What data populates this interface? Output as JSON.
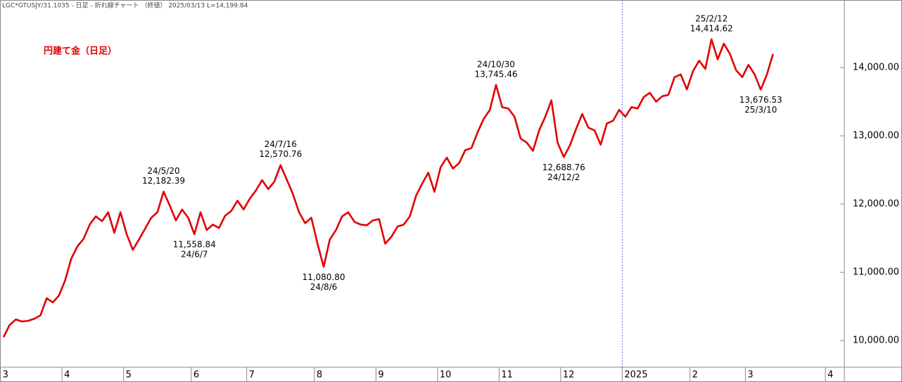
{
  "chart_data": {
    "type": "line",
    "header": "LGC*GTUSJY/31.1035 - 日足 - 折れ線チャート （終値） 2025/03/13 L=14,199.84",
    "title": "円建て金（日足）",
    "categories": [
      "3",
      null,
      null,
      null,
      null,
      null,
      null,
      null,
      null,
      null,
      "4",
      null,
      null,
      null,
      null,
      null,
      null,
      null,
      null,
      null,
      "5",
      null,
      null,
      null,
      null,
      null,
      null,
      null,
      null,
      null,
      null,
      "6",
      null,
      null,
      null,
      null,
      null,
      null,
      null,
      null,
      "7",
      null,
      null,
      null,
      null,
      null,
      null,
      null,
      null,
      null,
      null,
      "8",
      null,
      null,
      null,
      null,
      null,
      null,
      null,
      null,
      null,
      "9",
      null,
      null,
      null,
      null,
      null,
      null,
      null,
      null,
      null,
      "10",
      null,
      null,
      null,
      null,
      null,
      null,
      null,
      null,
      null,
      "11",
      null,
      null,
      null,
      null,
      null,
      null,
      null,
      null,
      null,
      "12",
      null,
      null,
      null,
      null,
      null,
      null,
      null,
      null,
      null,
      "2025",
      null,
      null,
      null,
      null,
      null,
      null,
      null,
      null,
      null,
      null,
      "2",
      null,
      null,
      null,
      null,
      null,
      null,
      null,
      null,
      "3",
      null,
      null,
      null,
      null,
      null,
      null,
      null,
      null,
      null,
      null,
      null,
      null,
      "4",
      null,
      null
    ],
    "series": [
      {
        "name": "円建て金",
        "color": "#e00000",
        "values": [
          10050,
          10230,
          10310,
          10280,
          10290,
          10320,
          10370,
          10620,
          10560,
          10660,
          10880,
          11200,
          11380,
          11490,
          11700,
          11820,
          11750,
          11880,
          11580,
          11880,
          11560,
          11330,
          11480,
          11640,
          11800,
          11880,
          12182.39,
          11980,
          11760,
          11920,
          11800,
          11558.84,
          11880,
          11620,
          11700,
          11650,
          11830,
          11900,
          12050,
          11920,
          12080,
          12200,
          12350,
          12220,
          12330,
          12570.76,
          12360,
          12150,
          11880,
          11720,
          11800,
          11420,
          11080.8,
          11480,
          11620,
          11820,
          11880,
          11740,
          11700,
          11690,
          11760,
          11780,
          11420,
          11520,
          11670,
          11700,
          11820,
          12120,
          12300,
          12460,
          12180,
          12540,
          12680,
          12520,
          12600,
          12790,
          12820,
          13050,
          13250,
          13380,
          13745.46,
          13420,
          13400,
          13280,
          12960,
          12900,
          12780,
          13080,
          13280,
          13520,
          12900,
          12688.76,
          12860,
          13100,
          13320,
          13120,
          13080,
          12870,
          13180,
          13220,
          13380,
          13280,
          13420,
          13400,
          13570,
          13630,
          13500,
          13580,
          13600,
          13860,
          13900,
          13680,
          13950,
          14100,
          13980,
          14414.62,
          14120,
          14350,
          14200,
          13960,
          13860,
          14040,
          13900,
          13676.53,
          13900,
          14199.84,
          null,
          null,
          null,
          null,
          null,
          null,
          null,
          null,
          null,
          null,
          null
        ],
        "value_labels": [
          null,
          null,
          null,
          null,
          null,
          null,
          null,
          null,
          null,
          null,
          null,
          null,
          null,
          null,
          null,
          null,
          null,
          null,
          null,
          null,
          null,
          null,
          null,
          null,
          null,
          null,
          "12,182.39",
          null,
          null,
          null,
          null,
          "11,558.84",
          null,
          null,
          null,
          null,
          null,
          null,
          null,
          null,
          null,
          null,
          null,
          null,
          null,
          "12,570.76",
          null,
          null,
          null,
          null,
          null,
          null,
          "11,080.80",
          null,
          null,
          null,
          null,
          null,
          null,
          null,
          null,
          null,
          null,
          null,
          null,
          null,
          null,
          null,
          null,
          null,
          null,
          null,
          null,
          null,
          null,
          null,
          null,
          null,
          null,
          null,
          "13,745.46",
          null,
          null,
          null,
          null,
          null,
          null,
          null,
          null,
          null,
          null,
          "12,688.76",
          null,
          null,
          null,
          null,
          null,
          null,
          null,
          null,
          null,
          null,
          null,
          null,
          null,
          null,
          null,
          null,
          null,
          null,
          null,
          null,
          null,
          null,
          null,
          "14,414.62",
          null,
          null,
          null,
          null,
          null,
          null,
          null,
          "13,676.53",
          null,
          null,
          null,
          null,
          null,
          null,
          null,
          null,
          null,
          null,
          null,
          null,
          null
        ],
        "date_labels": [
          null,
          null,
          null,
          null,
          null,
          null,
          null,
          null,
          null,
          null,
          null,
          null,
          null,
          null,
          null,
          null,
          null,
          null,
          null,
          null,
          null,
          null,
          null,
          null,
          null,
          null,
          "24/5/20",
          null,
          null,
          null,
          null,
          "24/6/7",
          null,
          null,
          null,
          null,
          null,
          null,
          null,
          null,
          null,
          null,
          null,
          null,
          null,
          "24/7/16",
          null,
          null,
          null,
          null,
          null,
          null,
          "24/8/6",
          null,
          null,
          null,
          null,
          null,
          null,
          null,
          null,
          null,
          null,
          null,
          null,
          null,
          null,
          null,
          null,
          null,
          null,
          null,
          null,
          null,
          null,
          null,
          null,
          null,
          null,
          null,
          "24/10/30",
          null,
          null,
          null,
          null,
          null,
          null,
          null,
          null,
          null,
          null,
          "24/12/2",
          null,
          null,
          null,
          null,
          null,
          null,
          null,
          null,
          null,
          null,
          null,
          null,
          null,
          null,
          null,
          null,
          null,
          null,
          null,
          null,
          null,
          null,
          null,
          "25/2/12",
          null,
          null,
          null,
          null,
          null,
          null,
          null,
          "25/3/10",
          null,
          null,
          null,
          null,
          null,
          null,
          null,
          null,
          null,
          null,
          null,
          null,
          null
        ]
      }
    ],
    "ylim": [
      9610,
      14990
    ],
    "yticks": [
      {
        "value": 10000,
        "label": "10,000.00"
      },
      {
        "value": 11000,
        "label": "11,000.00"
      },
      {
        "value": 12000,
        "label": "12,000.00"
      },
      {
        "value": 13000,
        "label": "13,000.00"
      },
      {
        "value": 14000,
        "label": "14,000.00"
      }
    ],
    "grid": false
  }
}
